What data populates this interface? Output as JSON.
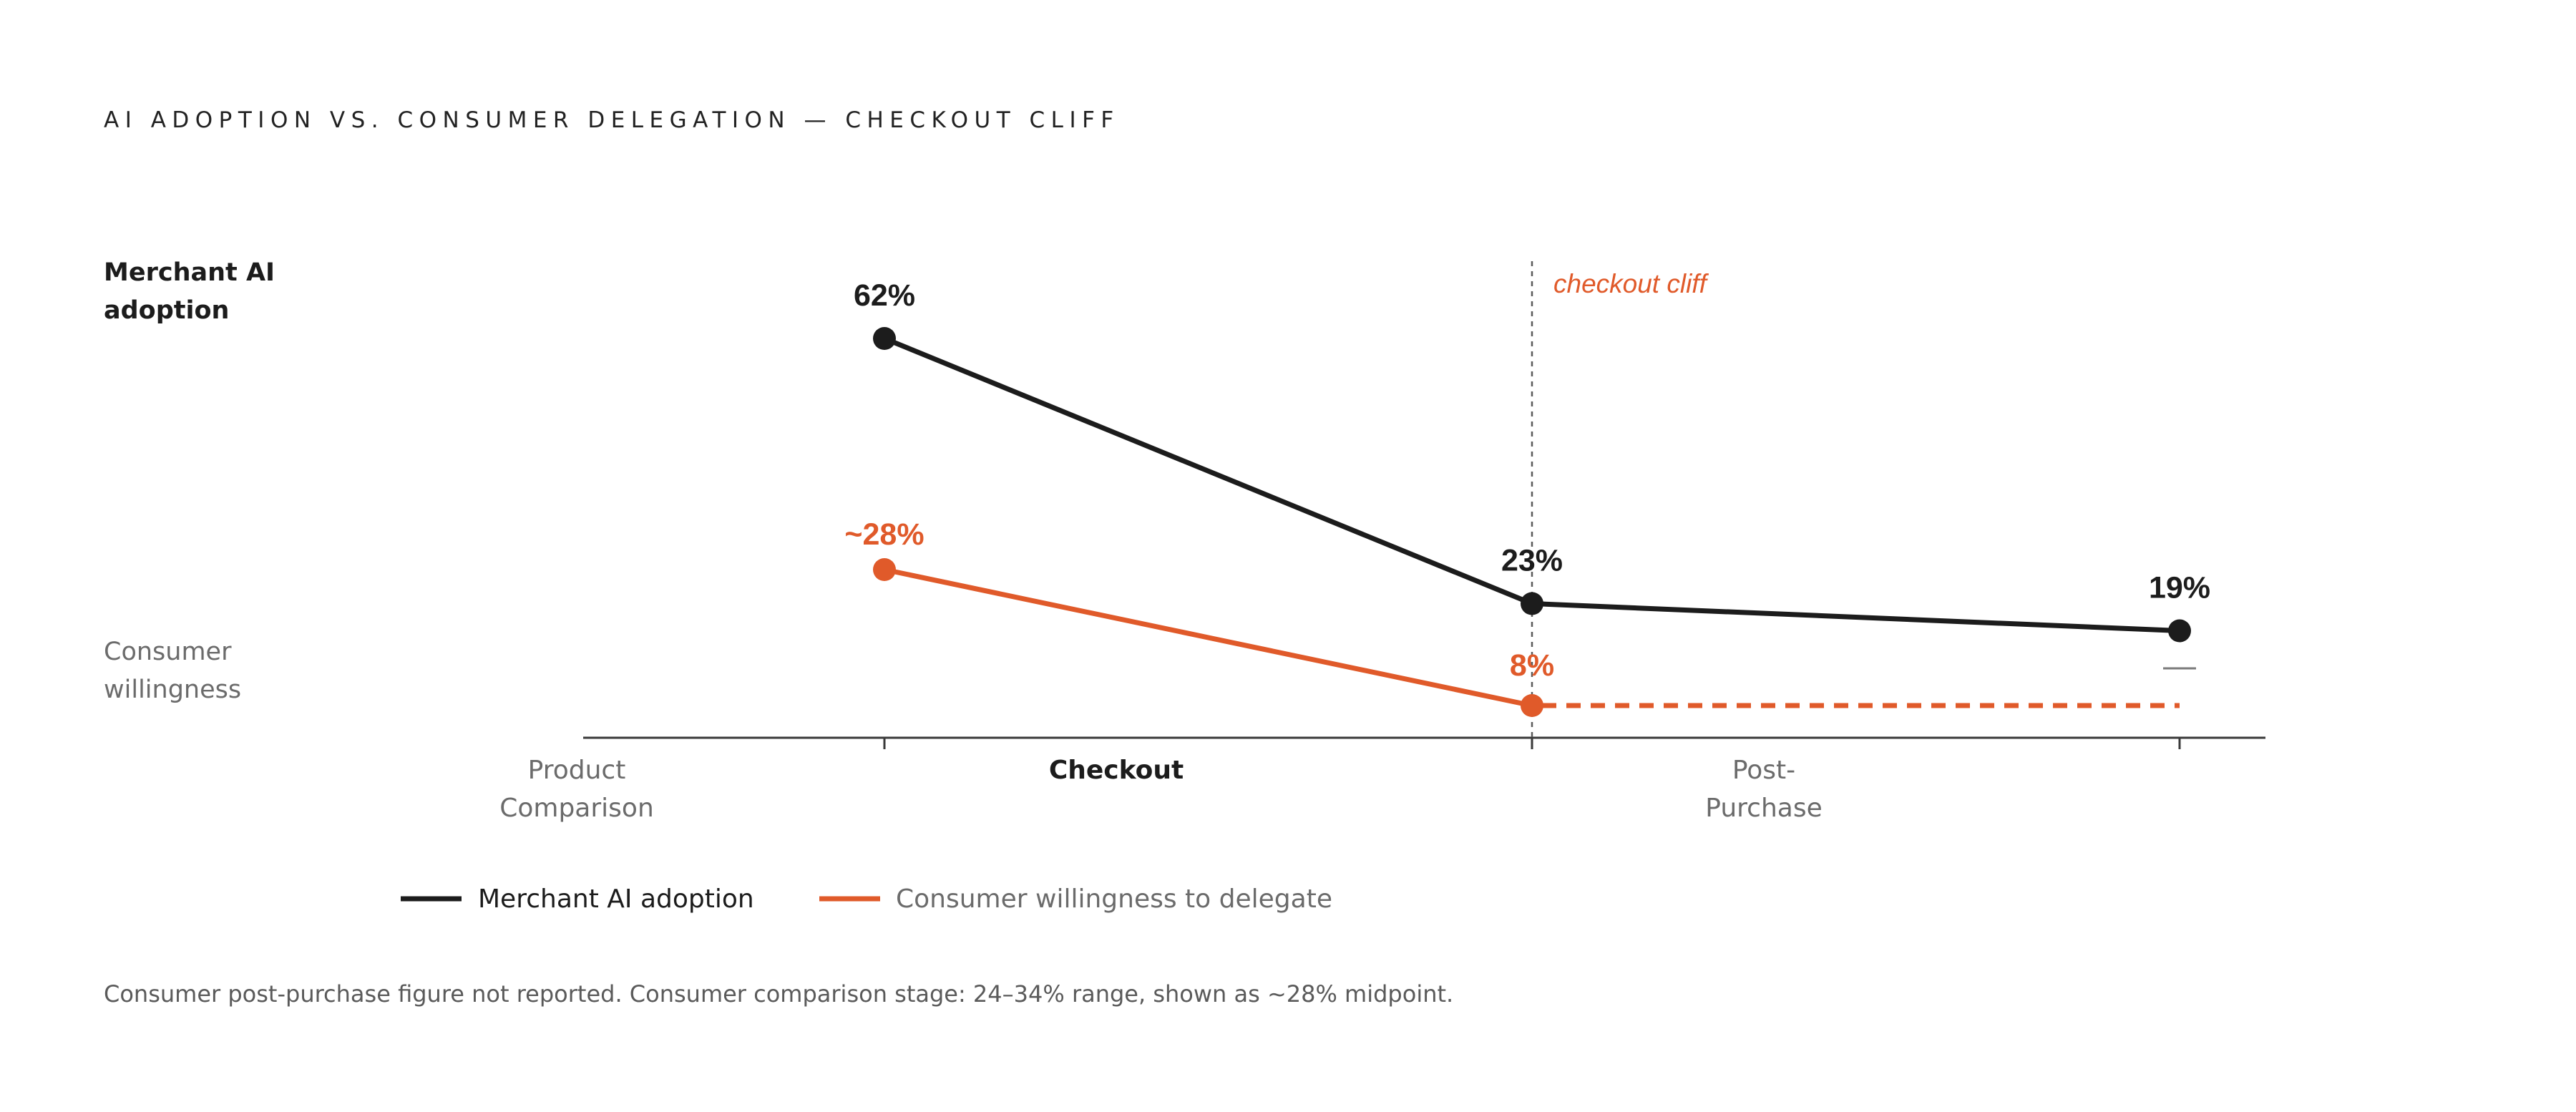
{
  "chart_data": {
    "type": "line",
    "title": "AI ADOPTION VS. CONSUMER DELEGATION — CHECKOUT CLIFF",
    "y_labels": {
      "top": [
        "Merchant AI",
        "adoption"
      ],
      "bottom": [
        "Consumer",
        "willingness"
      ]
    },
    "categories": [
      [
        "Product",
        "Comparison"
      ],
      [
        "Checkout"
      ],
      [
        "Post-",
        "Purchase"
      ]
    ],
    "active_category": 1,
    "x": [
      0,
      1,
      2
    ],
    "ylim": [
      0,
      70
    ],
    "series": [
      {
        "name": "Merchant AI adoption",
        "color": "#1c1c1c",
        "values": [
          62,
          23,
          19
        ],
        "labels": [
          "62%",
          "23%",
          "19%"
        ]
      },
      {
        "name": "Consumer willingness to delegate",
        "color": "#e05a2a",
        "values": [
          28,
          8,
          null
        ],
        "labels": [
          "~28%",
          "8%",
          "—"
        ],
        "projection": {
          "from_x": 1,
          "to_x": 2,
          "value": 8,
          "style": "dashed"
        }
      }
    ],
    "annotations": [
      {
        "text": "checkout cliff",
        "x": 1,
        "style": "dashed-vertical-line"
      }
    ],
    "legend": {
      "position": "bottom-left",
      "items": [
        "Merchant AI adoption",
        "Consumer willingness to delegate"
      ]
    },
    "footnote": "Consumer post-purchase figure not reported. Consumer comparison stage: 24–34% range, shown as ~28% midpoint.",
    "grid": false
  }
}
